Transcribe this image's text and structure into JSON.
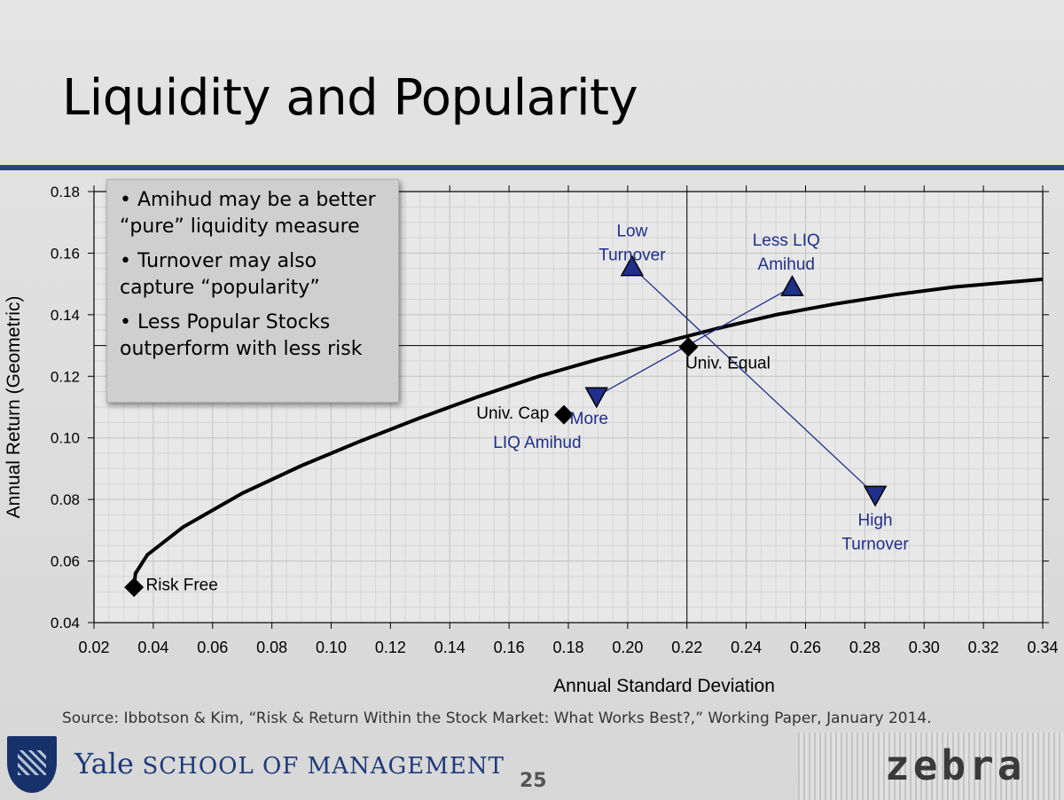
{
  "slide": {
    "title": "Liquidity and Popularity",
    "bullets": [
      "Amihud may be a better “pure” liquidity measure",
      "Turnover may also capture “popularity”",
      "Less Popular Stocks outperform with less risk"
    ],
    "bullet_symbol": "•",
    "source": "Source: Ibbotson & Kim, “Risk & Return Within the Stock Market:  What Works Best?,” Working Paper, January 2014.",
    "page_number": "25",
    "footer": {
      "yale": "Yale",
      "school": "SCHOOL OF MANAGEMENT",
      "brand": "zebra"
    },
    "colors": {
      "rule": "#2b4380",
      "markers": "#1f2f8a",
      "label_blue": "#1f2f8a"
    }
  },
  "chart_data": {
    "type": "scatter",
    "xlabel": "Annual Standard Deviation",
    "ylabel": "Annual Return (Geometric)",
    "xlim": [
      0.02,
      0.34
    ],
    "ylim": [
      0.04,
      0.18
    ],
    "xticks": [
      "0.02",
      "0.04",
      "0.06",
      "0.08",
      "0.10",
      "0.12",
      "0.14",
      "0.16",
      "0.18",
      "0.20",
      "0.22",
      "0.24",
      "0.26",
      "0.28",
      "0.30",
      "0.32",
      "0.34"
    ],
    "yticks": [
      "0.04",
      "0.06",
      "0.08",
      "0.10",
      "0.12",
      "0.14",
      "0.16",
      "0.18"
    ],
    "grid": true,
    "frontier_curve": [
      [
        0.0335,
        0.0515
      ],
      [
        0.034,
        0.056
      ],
      [
        0.038,
        0.062
      ],
      [
        0.05,
        0.071
      ],
      [
        0.07,
        0.082
      ],
      [
        0.09,
        0.091
      ],
      [
        0.11,
        0.099
      ],
      [
        0.13,
        0.1065
      ],
      [
        0.15,
        0.1135
      ],
      [
        0.17,
        0.12
      ],
      [
        0.19,
        0.1255
      ],
      [
        0.21,
        0.1305
      ],
      [
        0.23,
        0.1355
      ],
      [
        0.25,
        0.14
      ],
      [
        0.27,
        0.1435
      ],
      [
        0.29,
        0.1465
      ],
      [
        0.31,
        0.149
      ],
      [
        0.34,
        0.1515
      ]
    ],
    "crosshair": {
      "x": 0.22,
      "y": 0.13
    },
    "points": [
      {
        "name": "Risk Free",
        "x": 0.0335,
        "y": 0.0515,
        "marker": "diamond",
        "color": "black"
      },
      {
        "name": "Univ. Cap",
        "x": 0.1785,
        "y": 0.1075,
        "marker": "diamond",
        "color": "black"
      },
      {
        "name": "Univ. Equal",
        "x": 0.2205,
        "y": 0.1295,
        "marker": "diamond",
        "color": "black"
      },
      {
        "name": "Low Turnover",
        "x": 0.2015,
        "y": 0.1555,
        "marker": "triangle-up",
        "color": "blue"
      },
      {
        "name": "Less LIQ Amihud",
        "x": 0.2555,
        "y": 0.149,
        "marker": "triangle-up",
        "color": "blue"
      },
      {
        "name": "More LIQ Amihud",
        "x": 0.1895,
        "y": 0.1135,
        "marker": "triangle-down",
        "color": "blue"
      },
      {
        "name": "High Turnover",
        "x": 0.2835,
        "y": 0.0815,
        "marker": "triangle-down",
        "color": "blue"
      }
    ],
    "labels": [
      {
        "lines": [
          "Risk Free"
        ],
        "x": 0.0375,
        "y": 0.0505,
        "align": "start",
        "color": "black"
      },
      {
        "lines": [
          "Univ. Cap"
        ],
        "x": 0.1735,
        "y": 0.1063,
        "align": "end",
        "color": "black"
      },
      {
        "lines": [
          "Univ. Equal"
        ],
        "x": 0.2195,
        "y": 0.1225,
        "align": "start",
        "color": "black"
      },
      {
        "lines": [
          "Low",
          "Turnover"
        ],
        "x": 0.2015,
        "y": 0.1655,
        "align": "middle",
        "color": "blue"
      },
      {
        "lines": [
          "Less LIQ",
          "Amihud"
        ],
        "x": 0.2535,
        "y": 0.1625,
        "align": "middle",
        "color": "blue"
      },
      {
        "lines": [
          "More",
          "LIQ Amihud"
        ],
        "x": 0.1695,
        "y": 0.1045,
        "align": "middle",
        "color": "blue",
        "first_line_start": 0.1805
      },
      {
        "lines": [
          "High",
          "Turnover"
        ],
        "x": 0.2835,
        "y": 0.0715,
        "align": "middle",
        "color": "blue"
      }
    ],
    "connections": [
      [
        "Low Turnover",
        "High Turnover"
      ],
      [
        "More LIQ Amihud",
        "Less LIQ Amihud"
      ]
    ]
  }
}
